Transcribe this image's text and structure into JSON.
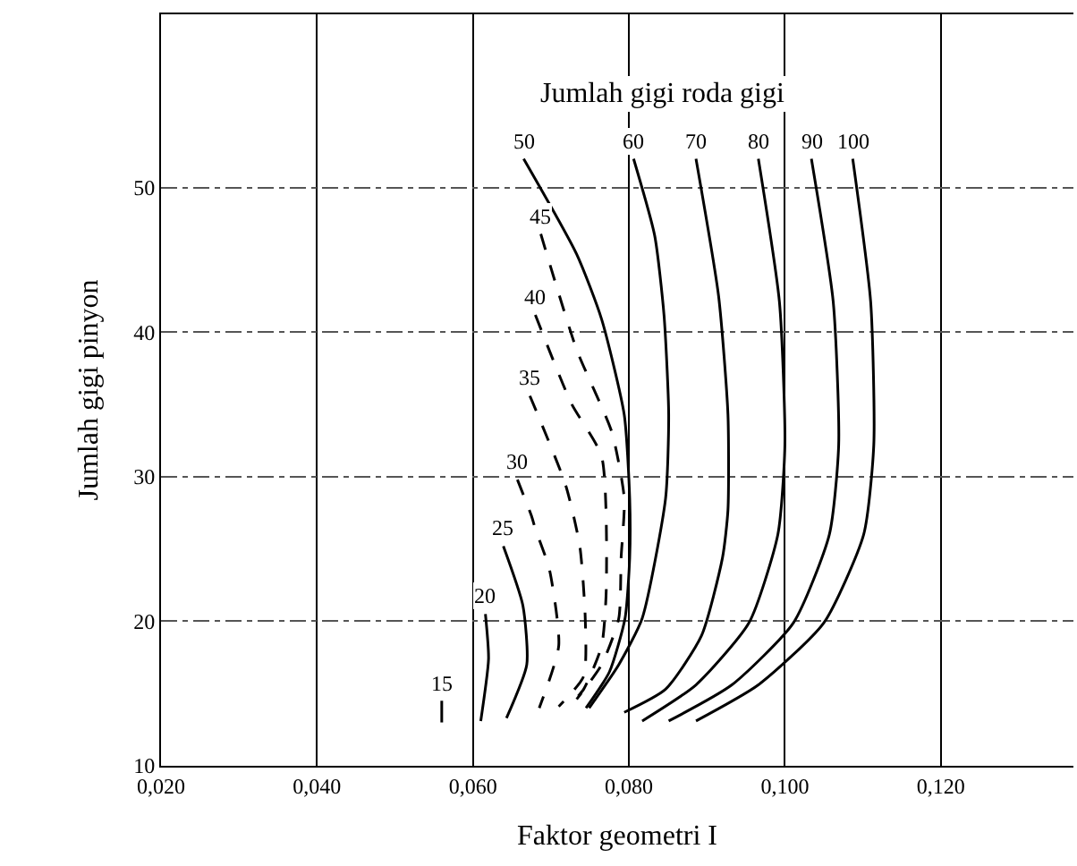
{
  "chart_data": {
    "type": "line",
    "title": "Jumlah gigi roda gigi",
    "xlabel": "Faktor geometri I",
    "ylabel": "Jumlah gigi pinyon",
    "xlim": [
      0.02,
      0.137
    ],
    "ylim": [
      10,
      62
    ],
    "xticks": [
      {
        "value": 0.02,
        "label": "0,020"
      },
      {
        "value": 0.04,
        "label": "0,040"
      },
      {
        "value": 0.06,
        "label": "0,060"
      },
      {
        "value": 0.08,
        "label": "0,080"
      },
      {
        "value": 0.1,
        "label": "0,100"
      },
      {
        "value": 0.12,
        "label": "0,120"
      }
    ],
    "yticks": [
      10,
      20,
      30,
      40,
      50
    ],
    "grid": true,
    "marker": "none",
    "series": [
      {
        "name": "15",
        "color": "#000000",
        "line_style": "solid",
        "x": [
          0.056,
          0.056
        ],
        "values": [
          14.5,
          13.0
        ]
      },
      {
        "name": "20",
        "color": "#000000",
        "line_style": "solid",
        "x": [
          0.0616,
          0.062,
          0.061
        ],
        "values": [
          20.5,
          17.4,
          13.1
        ]
      },
      {
        "name": "25",
        "color": "#000000",
        "line_style": "solid",
        "x": [
          0.0639,
          0.0664,
          0.0669,
          0.0643
        ],
        "values": [
          25.2,
          21.1,
          17.0,
          13.3
        ]
      },
      {
        "name": "30",
        "color": "#000000",
        "line_style": "dashed",
        "x": [
          0.0657,
          0.0675,
          0.068,
          0.0698,
          0.071,
          0.0685
        ],
        "values": [
          29.8,
          27.3,
          26.4,
          23.6,
          18.3,
          14.0
        ]
      },
      {
        "name": "35",
        "color": "#000000",
        "line_style": "dashed",
        "x": [
          0.0673,
          0.0719,
          0.0737,
          0.0744,
          0.0742,
          0.071
        ],
        "values": [
          35.6,
          29.4,
          25.2,
          20.2,
          16.2,
          14.1
        ]
      },
      {
        "name": "40",
        "color": "#000000",
        "line_style": "dashed",
        "x": [
          0.068,
          0.0726,
          0.0765,
          0.0771,
          0.0765,
          0.0742,
          0.0726
        ],
        "values": [
          41.2,
          35.1,
          31.4,
          22.3,
          18.3,
          15.3,
          14.3
        ]
      },
      {
        "name": "45",
        "color": "#000000",
        "line_style": "dashed",
        "x": [
          0.0687,
          0.0733,
          0.0778,
          0.0794,
          0.079,
          0.0787,
          0.0765,
          0.0733
        ],
        "values": [
          46.8,
          38.8,
          33.1,
          28.5,
          24.4,
          20.2,
          17.0,
          14.6
        ]
      },
      {
        "name": "50",
        "color": "#000000",
        "line_style": "solid",
        "x": [
          0.0665,
          0.0733,
          0.0765,
          0.0794,
          0.0801,
          0.0801,
          0.0795,
          0.0775,
          0.0745
        ],
        "values": [
          52.0,
          45.4,
          40.9,
          34.3,
          28.5,
          24.4,
          20.2,
          16.5,
          14.0
        ]
      },
      {
        "name": "60",
        "color": "#000000",
        "line_style": "solid",
        "x": [
          0.0806,
          0.0833,
          0.0845,
          0.0851,
          0.0847,
          0.0817,
          0.0787,
          0.0749
        ],
        "values": [
          52.0,
          46.7,
          41.2,
          34.3,
          28.5,
          20.2,
          17.0,
          14.0
        ]
      },
      {
        "name": "70",
        "color": "#000000",
        "line_style": "solid",
        "x": [
          0.0886,
          0.0915,
          0.0927,
          0.0927,
          0.092,
          0.0893,
          0.0847,
          0.0794
        ],
        "values": [
          52.0,
          42.5,
          34.3,
          27.7,
          24.4,
          19.0,
          15.3,
          13.7
        ]
      },
      {
        "name": "80",
        "color": "#000000",
        "line_style": "solid",
        "x": [
          0.0966,
          0.0993,
          0.1,
          0.0991,
          0.0954,
          0.0886,
          0.0817
        ],
        "values": [
          52.0,
          42.1,
          32.2,
          26.0,
          19.9,
          15.6,
          13.1
        ]
      },
      {
        "name": "90",
        "color": "#000000",
        "line_style": "solid",
        "x": [
          0.1034,
          0.1062,
          0.1069,
          0.1057,
          0.1011,
          0.0932,
          0.0851
        ],
        "values": [
          52.0,
          42.1,
          32.2,
          26.0,
          19.9,
          15.6,
          13.1
        ]
      },
      {
        "name": "100",
        "color": "#000000",
        "line_style": "solid",
        "x": [
          0.1087,
          0.111,
          0.1114,
          0.1101,
          0.105,
          0.0966,
          0.0886
        ],
        "values": [
          52.0,
          42.1,
          32.2,
          26.0,
          19.9,
          15.6,
          13.1
        ]
      }
    ]
  }
}
